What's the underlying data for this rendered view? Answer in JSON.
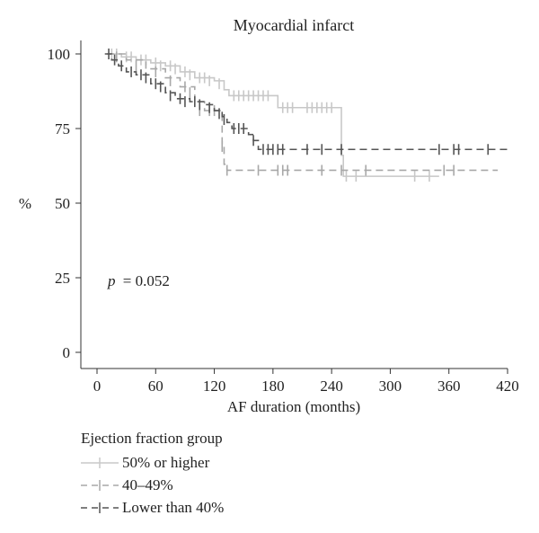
{
  "chart_data": {
    "type": "line",
    "title": "Myocardial infarct",
    "xlabel": "AF duration (months)",
    "ylabel": "%",
    "xlim": [
      0,
      420
    ],
    "ylim": [
      0,
      100
    ],
    "xticks": [
      0,
      60,
      120,
      180,
      240,
      300,
      360,
      420
    ],
    "yticks": [
      0,
      25,
      50,
      75,
      100
    ],
    "annotation": {
      "p_label": "p",
      "p_value": "= 0.052"
    },
    "legend_title": "Ejection fraction group",
    "series": [
      {
        "name": "50% or higher",
        "color": "#c8c8c8",
        "dash": "solid",
        "steps": [
          [
            10,
            100
          ],
          [
            25,
            99
          ],
          [
            40,
            98
          ],
          [
            55,
            97
          ],
          [
            70,
            96
          ],
          [
            85,
            94
          ],
          [
            100,
            92
          ],
          [
            120,
            91
          ],
          [
            130,
            88
          ],
          [
            135,
            86
          ],
          [
            180,
            86
          ],
          [
            185,
            82
          ],
          [
            245,
            82
          ],
          [
            250,
            66
          ],
          [
            252,
            59
          ],
          [
            350,
            59
          ]
        ],
        "censors": [
          [
            15,
            100
          ],
          [
            20,
            100
          ],
          [
            30,
            99
          ],
          [
            35,
            99
          ],
          [
            45,
            98
          ],
          [
            50,
            98
          ],
          [
            60,
            97
          ],
          [
            65,
            96
          ],
          [
            75,
            96
          ],
          [
            80,
            95
          ],
          [
            90,
            94
          ],
          [
            95,
            93
          ],
          [
            105,
            92
          ],
          [
            110,
            92
          ],
          [
            115,
            91
          ],
          [
            125,
            90
          ],
          [
            140,
            86
          ],
          [
            145,
            86
          ],
          [
            150,
            86
          ],
          [
            155,
            86
          ],
          [
            160,
            86
          ],
          [
            165,
            86
          ],
          [
            170,
            86
          ],
          [
            175,
            86
          ],
          [
            190,
            82
          ],
          [
            195,
            82
          ],
          [
            200,
            82
          ],
          [
            215,
            82
          ],
          [
            220,
            82
          ],
          [
            225,
            82
          ],
          [
            230,
            82
          ],
          [
            235,
            82
          ],
          [
            240,
            82
          ],
          [
            255,
            59
          ],
          [
            265,
            59
          ],
          [
            325,
            59
          ],
          [
            340,
            59
          ]
        ]
      },
      {
        "name": "40–49%",
        "color": "#a8a8a8",
        "dash": "dashed",
        "steps": [
          [
            10,
            100
          ],
          [
            30,
            98
          ],
          [
            50,
            95
          ],
          [
            70,
            92
          ],
          [
            85,
            89
          ],
          [
            100,
            84
          ],
          [
            110,
            81
          ],
          [
            124,
            81
          ],
          [
            128,
            69
          ],
          [
            130,
            63
          ],
          [
            133,
            61
          ],
          [
            410,
            61
          ]
        ],
        "censors": [
          [
            20,
            99
          ],
          [
            40,
            96
          ],
          [
            60,
            94
          ],
          [
            75,
            91
          ],
          [
            90,
            89
          ],
          [
            95,
            87
          ],
          [
            105,
            81
          ],
          [
            115,
            81
          ],
          [
            120,
            81
          ],
          [
            128,
            69
          ],
          [
            133,
            61
          ],
          [
            165,
            61
          ],
          [
            185,
            61
          ],
          [
            190,
            61
          ],
          [
            195,
            61
          ],
          [
            230,
            61
          ],
          [
            250,
            61
          ],
          [
            275,
            61
          ],
          [
            355,
            61
          ],
          [
            365,
            61
          ]
        ]
      },
      {
        "name": "Lower than 40%",
        "color": "#555555",
        "dash": "dashed",
        "steps": [
          [
            8,
            100
          ],
          [
            15,
            98
          ],
          [
            22,
            96
          ],
          [
            30,
            94
          ],
          [
            40,
            93
          ],
          [
            55,
            90
          ],
          [
            70,
            87
          ],
          [
            80,
            85
          ],
          [
            95,
            84
          ],
          [
            110,
            83
          ],
          [
            120,
            81
          ],
          [
            128,
            79
          ],
          [
            133,
            77
          ],
          [
            138,
            75
          ],
          [
            155,
            73
          ],
          [
            160,
            71
          ],
          [
            165,
            68
          ],
          [
            420,
            68
          ]
        ],
        "censors": [
          [
            12,
            100
          ],
          [
            18,
            98
          ],
          [
            25,
            96
          ],
          [
            35,
            94
          ],
          [
            45,
            93
          ],
          [
            50,
            92
          ],
          [
            60,
            90
          ],
          [
            65,
            89
          ],
          [
            75,
            86
          ],
          [
            85,
            85
          ],
          [
            90,
            84
          ],
          [
            100,
            84
          ],
          [
            105,
            83
          ],
          [
            115,
            82
          ],
          [
            125,
            80
          ],
          [
            130,
            78
          ],
          [
            140,
            75
          ],
          [
            145,
            75
          ],
          [
            150,
            75
          ],
          [
            160,
            71
          ],
          [
            170,
            68
          ],
          [
            175,
            68
          ],
          [
            180,
            68
          ],
          [
            185,
            68
          ],
          [
            190,
            68
          ],
          [
            215,
            68
          ],
          [
            230,
            68
          ],
          [
            250,
            68
          ],
          [
            350,
            68
          ],
          [
            365,
            68
          ],
          [
            370,
            68
          ],
          [
            400,
            68
          ]
        ]
      }
    ]
  }
}
